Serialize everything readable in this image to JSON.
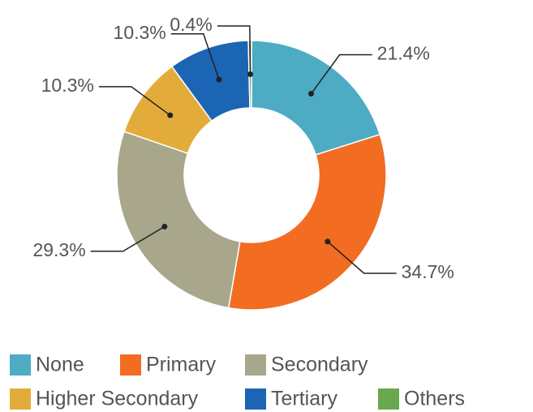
{
  "chart_data": {
    "type": "pie",
    "categories": [
      "None",
      "Primary",
      "Secondary",
      "Higher Secondary",
      "Tertiary",
      "Others"
    ],
    "values": [
      21.4,
      34.7,
      29.3,
      10.3,
      10.3,
      0.4
    ],
    "value_labels": [
      "21.4%",
      "34.7%",
      "29.3%",
      "10.3%",
      "10.3%",
      "0.4%"
    ],
    "colors": [
      "#4eabc4",
      "#f26c22",
      "#a8a78c",
      "#e3ac3a",
      "#1c65b4",
      "#6aa84f"
    ],
    "donut": true
  }
}
